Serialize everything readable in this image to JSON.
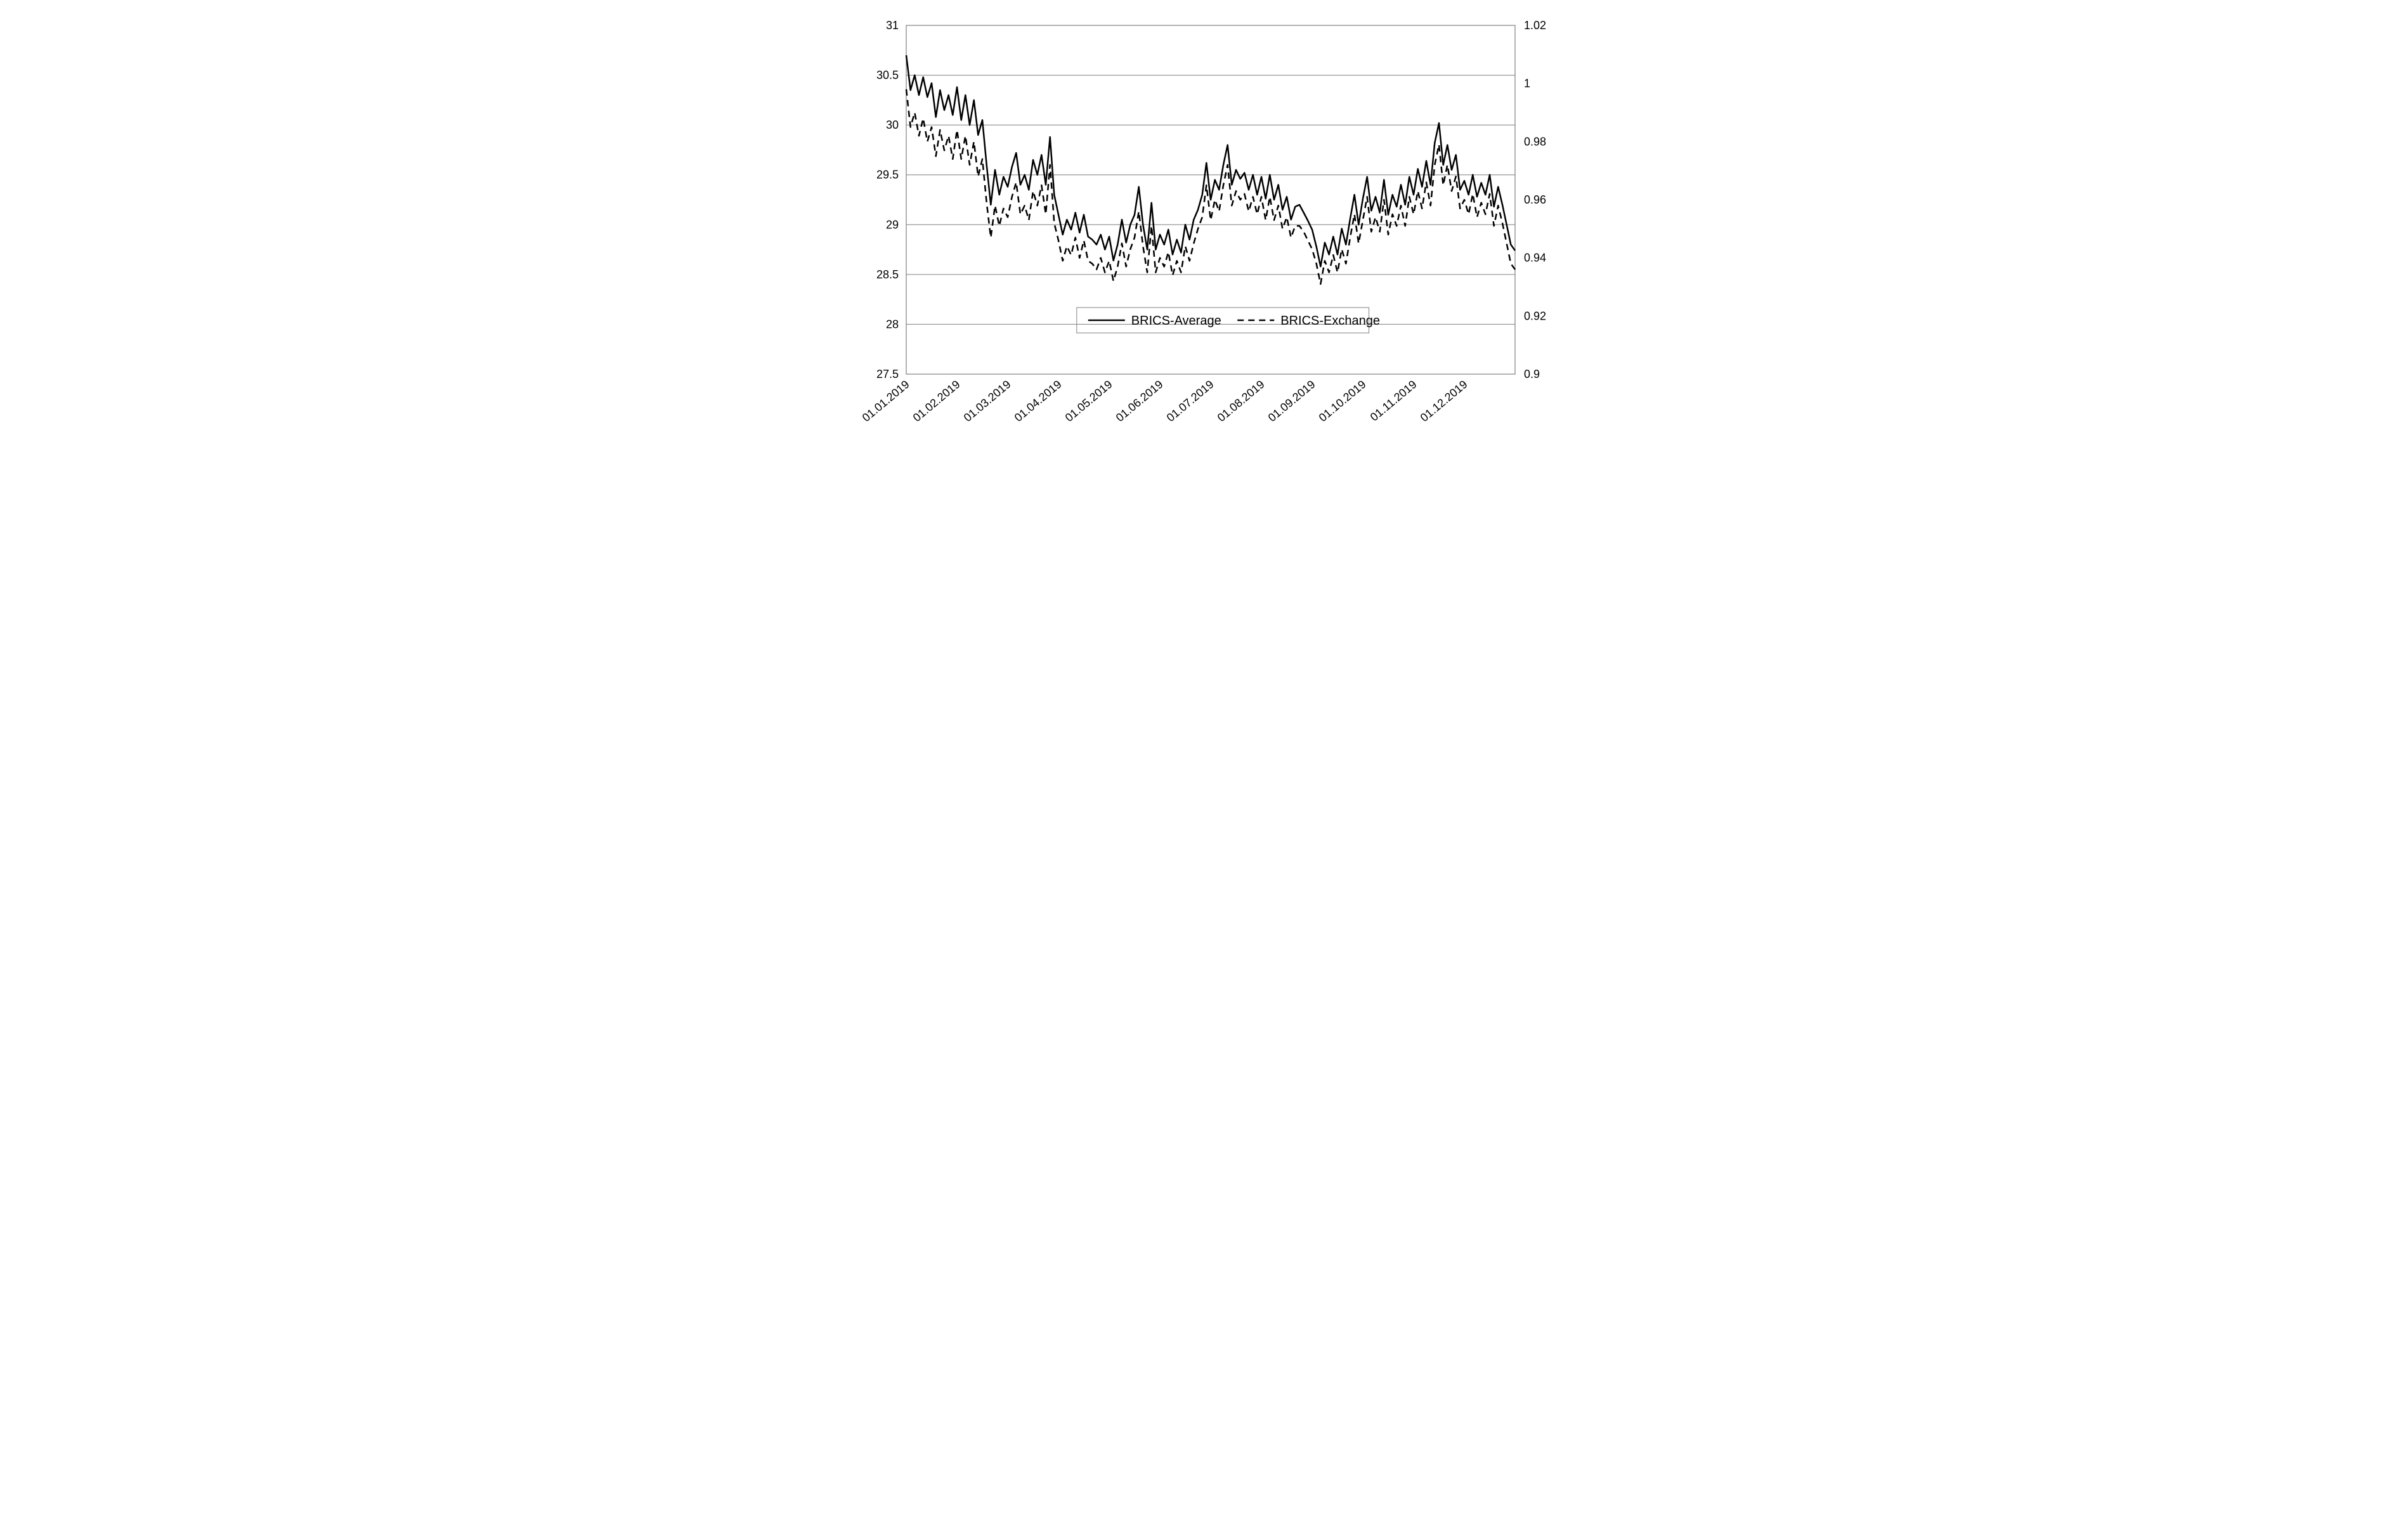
{
  "chart": {
    "type": "line",
    "background_color": "#ffffff",
    "grid_color": "#808080",
    "axis_color": "#808080",
    "text_color": "#000000",
    "tick_fontsize": 18,
    "legend_fontsize": 20,
    "y_left": {
      "min": 27.5,
      "max": 31,
      "step": 0.5,
      "labels": [
        "27.5",
        "28",
        "28.5",
        "29",
        "29.5",
        "30",
        "30.5",
        "31"
      ]
    },
    "y_right": {
      "min": 0.9,
      "max": 1.02,
      "step": 0.02,
      "labels": [
        "0.9",
        "0.92",
        "0.94",
        "0.96",
        "0.98",
        "1",
        "1.02"
      ]
    },
    "x": {
      "labels": [
        "01.01.2019",
        "01.02.2019",
        "01.03.2019",
        "01.04.2019",
        "01.05.2019",
        "01.06.2019",
        "01.07.2019",
        "01.08.2019",
        "01.09.2019",
        "01.10.2019",
        "01.11.2019",
        "01.12.2019"
      ],
      "rotation": -40
    },
    "legend": {
      "position": "inside-bottom-center",
      "items": [
        {
          "label": "BRICS-Average",
          "style": "solid",
          "color": "#000000",
          "width": 3
        },
        {
          "label": "BRICS-Exchange",
          "style": "dashed",
          "color": "#000000",
          "width": 3,
          "dash": "10 7"
        }
      ]
    },
    "series": [
      {
        "name": "BRICS-Average",
        "axis": "left",
        "style": "solid",
        "color": "#000000",
        "line_width": 2.5,
        "values": [
          30.7,
          30.35,
          30.5,
          30.3,
          30.48,
          30.28,
          30.42,
          30.08,
          30.35,
          30.15,
          30.3,
          30.1,
          30.38,
          30.05,
          30.3,
          30.0,
          30.25,
          29.9,
          30.05,
          29.6,
          29.2,
          29.55,
          29.3,
          29.48,
          29.38,
          29.58,
          29.72,
          29.4,
          29.5,
          29.35,
          29.65,
          29.5,
          29.7,
          29.4,
          29.88,
          29.3,
          29.1,
          28.9,
          29.05,
          28.95,
          29.12,
          28.92,
          29.1,
          28.88,
          28.85,
          28.8,
          28.9,
          28.75,
          28.88,
          28.64,
          28.8,
          29.05,
          28.82,
          29.0,
          29.1,
          29.38,
          29.0,
          28.75,
          29.22,
          28.75,
          28.9,
          28.8,
          28.95,
          28.7,
          28.85,
          28.72,
          29.0,
          28.85,
          29.05,
          29.15,
          29.3,
          29.62,
          29.25,
          29.45,
          29.35,
          29.6,
          29.8,
          29.4,
          29.55,
          29.46,
          29.52,
          29.35,
          29.5,
          29.3,
          29.48,
          29.26,
          29.5,
          29.25,
          29.4,
          29.15,
          29.28,
          29.05,
          29.18,
          29.2,
          29.12,
          29.04,
          28.95,
          28.78,
          28.58,
          28.82,
          28.7,
          28.88,
          28.7,
          28.96,
          28.8,
          29.06,
          29.3,
          29.0,
          29.26,
          29.48,
          29.14,
          29.28,
          29.12,
          29.45,
          29.1,
          29.3,
          29.18,
          29.4,
          29.2,
          29.48,
          29.3,
          29.56,
          29.38,
          29.64,
          29.4,
          29.82,
          30.02,
          29.6,
          29.8,
          29.55,
          29.7,
          29.35,
          29.44,
          29.3,
          29.5,
          29.28,
          29.42,
          29.3,
          29.5,
          29.18,
          29.38,
          29.2,
          29.0,
          28.8,
          28.74
        ]
      },
      {
        "name": "BRICS-Exchange",
        "axis": "right",
        "style": "dashed",
        "color": "#000000",
        "line_width": 2.5,
        "dash": "10 7",
        "values": [
          0.998,
          0.985,
          0.99,
          0.982,
          0.988,
          0.98,
          0.985,
          0.975,
          0.984,
          0.977,
          0.982,
          0.974,
          0.984,
          0.974,
          0.982,
          0.972,
          0.98,
          0.968,
          0.974,
          0.959,
          0.947,
          0.958,
          0.951,
          0.957,
          0.954,
          0.961,
          0.966,
          0.955,
          0.958,
          0.953,
          0.963,
          0.958,
          0.965,
          0.955,
          0.972,
          0.952,
          0.946,
          0.939,
          0.944,
          0.941,
          0.947,
          0.94,
          0.946,
          0.939,
          0.938,
          0.936,
          0.94,
          0.935,
          0.939,
          0.932,
          0.937,
          0.945,
          0.937,
          0.943,
          0.947,
          0.956,
          0.944,
          0.935,
          0.951,
          0.935,
          0.94,
          0.937,
          0.942,
          0.934,
          0.939,
          0.935,
          0.944,
          0.939,
          0.945,
          0.95,
          0.954,
          0.965,
          0.953,
          0.96,
          0.956,
          0.965,
          0.972,
          0.958,
          0.963,
          0.96,
          0.962,
          0.956,
          0.961,
          0.955,
          0.961,
          0.953,
          0.961,
          0.953,
          0.958,
          0.95,
          0.954,
          0.947,
          0.951,
          0.951,
          0.949,
          0.946,
          0.943,
          0.938,
          0.931,
          0.939,
          0.935,
          0.941,
          0.935,
          0.943,
          0.938,
          0.947,
          0.955,
          0.945,
          0.953,
          0.961,
          0.949,
          0.954,
          0.949,
          0.96,
          0.948,
          0.955,
          0.951,
          0.958,
          0.951,
          0.961,
          0.955,
          0.963,
          0.957,
          0.966,
          0.958,
          0.972,
          0.979,
          0.965,
          0.972,
          0.963,
          0.968,
          0.957,
          0.96,
          0.955,
          0.962,
          0.954,
          0.959,
          0.955,
          0.962,
          0.951,
          0.958,
          0.952,
          0.945,
          0.938,
          0.936
        ]
      }
    ]
  }
}
